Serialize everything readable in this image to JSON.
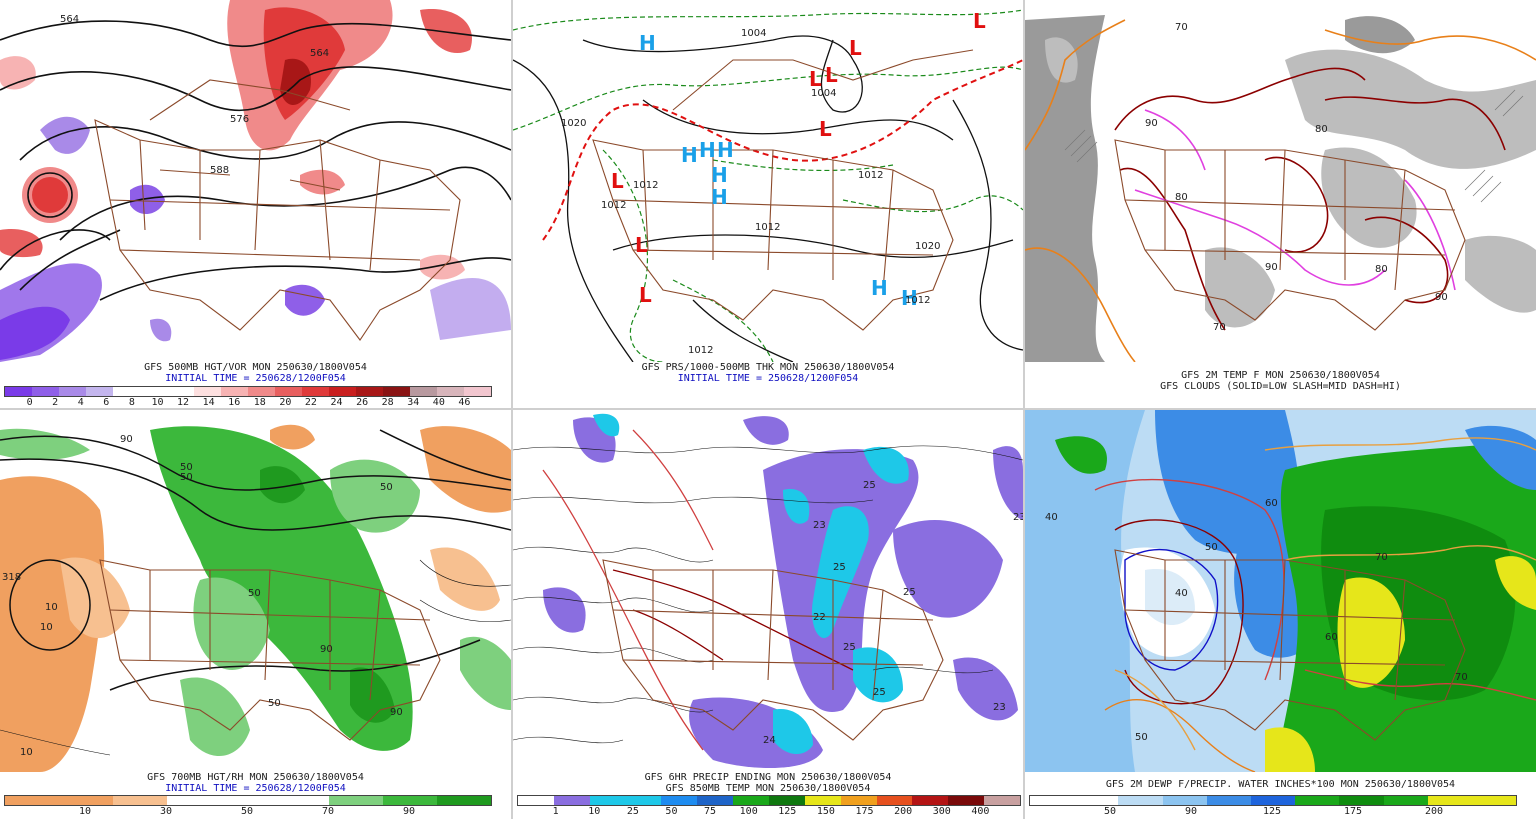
{
  "panels": [
    {
      "id": "p500",
      "caption1": "GFS 500MB HGT/VOR MON 250630/1800V054",
      "caption2": "INITIAL TIME = 250628/1200F054",
      "colorbar_ticks": [
        "0",
        "2",
        "4",
        "6",
        "8",
        "10",
        "12",
        "14",
        "16",
        "18",
        "20",
        "22",
        "24",
        "26",
        "28",
        "34",
        "40",
        "46"
      ],
      "colorbar_colors": [
        "#7a3be8",
        "#8f5fe8",
        "#a98ae8",
        "#c4b6ee",
        "#ffffff",
        "#ffffff",
        "#ffffff",
        "#fde0e0",
        "#f7b3b3",
        "#f08a8a",
        "#e85f5f",
        "#e03a3a",
        "#c91f1f",
        "#a81717",
        "#8a1414",
        "#b8999f",
        "#d8b5bb",
        "#f2c6cf"
      ],
      "contour_labels": [
        "564",
        "564",
        "576",
        "588"
      ]
    },
    {
      "id": "psfc",
      "caption1": "GFS PRS/1000-500MB THK MON 250630/1800V054",
      "caption2": "INITIAL TIME = 250628/1200F054",
      "contour_labels": [
        "1004",
        "1004",
        "1020",
        "1012",
        "1012",
        "1012",
        "1012",
        "1020",
        "1012",
        "1012"
      ],
      "highs": [
        "H",
        "H",
        "H",
        "H",
        "H",
        "H",
        "H",
        "H"
      ],
      "lows": [
        "L",
        "L",
        "L",
        "L",
        "L",
        "L",
        "L",
        "L"
      ]
    },
    {
      "id": "ptemp",
      "caption1": "GFS 2M TEMP F MON 250630/1800V054",
      "caption2": "GFS CLOUDS (SOLID=LOW SLASH=MID DASH=HI)",
      "contour_labels": [
        "70",
        "80",
        "90",
        "80",
        "90",
        "80",
        "90",
        "70"
      ]
    },
    {
      "id": "p700",
      "caption1": "GFS 700MB HGT/RH MON 250630/1800V054",
      "caption2": "INITIAL TIME = 250628/1200F054",
      "colorbar_ticks": [
        "10",
        "30",
        "50",
        "70",
        "90"
      ],
      "colorbar_colors": [
        "#f0a060",
        "#f0a060",
        "#f7c090",
        "#ffffff",
        "#ffffff",
        "#ffffff",
        "#7ed07e",
        "#3cb83c",
        "#1f9a1f"
      ],
      "contour_labels": [
        "90",
        "50",
        "10",
        "318",
        "10",
        "50",
        "50",
        "90",
        "50",
        "90",
        "10",
        "50"
      ]
    },
    {
      "id": "pprecip",
      "caption1": "GFS 6HR PRECIP ENDING MON 250630/1800V054",
      "caption2": "GFS 850MB TEMP MON 250630/1800V054",
      "colorbar_ticks": [
        "1",
        "10",
        "25",
        "50",
        "75",
        "100",
        "125",
        "150",
        "175",
        "200",
        "300",
        "400"
      ],
      "colorbar_colors": [
        "#ffffff",
        "#8a6ee0",
        "#1ec8e8",
        "#1ec8e8",
        "#1e8cf0",
        "#1e64c8",
        "#1aa81a",
        "#0f780f",
        "#e6e61a",
        "#f0a01e",
        "#e6501e",
        "#b41414",
        "#7a0a0a",
        "#c8a0a0"
      ],
      "contour_labels": [
        "25",
        "23",
        "25",
        "22",
        "25",
        "25",
        "24",
        "23",
        "25",
        "23"
      ]
    },
    {
      "id": "pdew",
      "caption1": "GFS 2M DEWP F/PRECIP. WATER INCHES*100 MON 250630/1800V054",
      "caption2": "",
      "colorbar_ticks": [
        "50",
        "90",
        "125",
        "175",
        "200"
      ],
      "colorbar_colors": [
        "#ffffff",
        "#ffffff",
        "#bcdcf4",
        "#8cc4f0",
        "#3c8ce6",
        "#1e64dc",
        "#1aa81a",
        "#0f8c0f",
        "#1aa81a",
        "#e6e61a",
        "#e6e61a"
      ],
      "contour_labels": [
        "40",
        "50",
        "60",
        "70",
        "60",
        "50",
        "40",
        "70"
      ]
    }
  ],
  "colors": {
    "border_brown": "#8b4a2b",
    "contour_black": "#111111",
    "dashed_green": "#1a8a1a",
    "dashed_red": "#e01010",
    "high_blue": "#1aa0e8",
    "low_red": "#e01010",
    "temp_dark_red": "#8b0000",
    "temp_magenta": "#e040e0",
    "temp_orange": "#e8801a",
    "cloud_gray": "#9a9a9a"
  }
}
